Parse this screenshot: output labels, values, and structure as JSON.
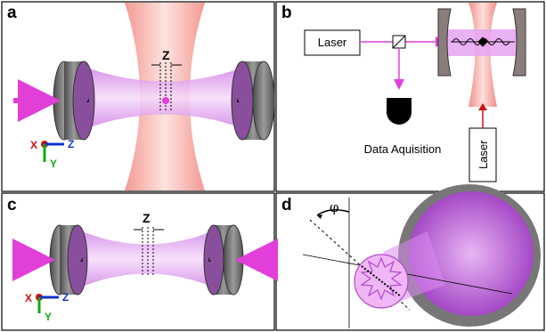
{
  "panels": {
    "a": {
      "letter": "a",
      "z_label": "Z",
      "axes": {
        "x": "X",
        "y": "Y",
        "z": "Z"
      }
    },
    "b": {
      "letter": "b",
      "laser_top": "Laser",
      "data": "Data Aquisition",
      "laser_bottom": "Laser"
    },
    "c": {
      "letter": "c",
      "z_label": "Z",
      "axes": {
        "x": "X",
        "y": "Y",
        "z": "Z"
      }
    },
    "d": {
      "letter": "d",
      "angle_label": "φ"
    }
  },
  "colors": {
    "cavity_mode": "#d98cf0",
    "pump_beam": "#f7a8a3",
    "arrow_magenta": "#e23fd8",
    "mirror_gray": "#6e6e6e",
    "axis_x": "#cc1111",
    "axis_y": "#11aa11",
    "axis_z": "#1133cc"
  }
}
